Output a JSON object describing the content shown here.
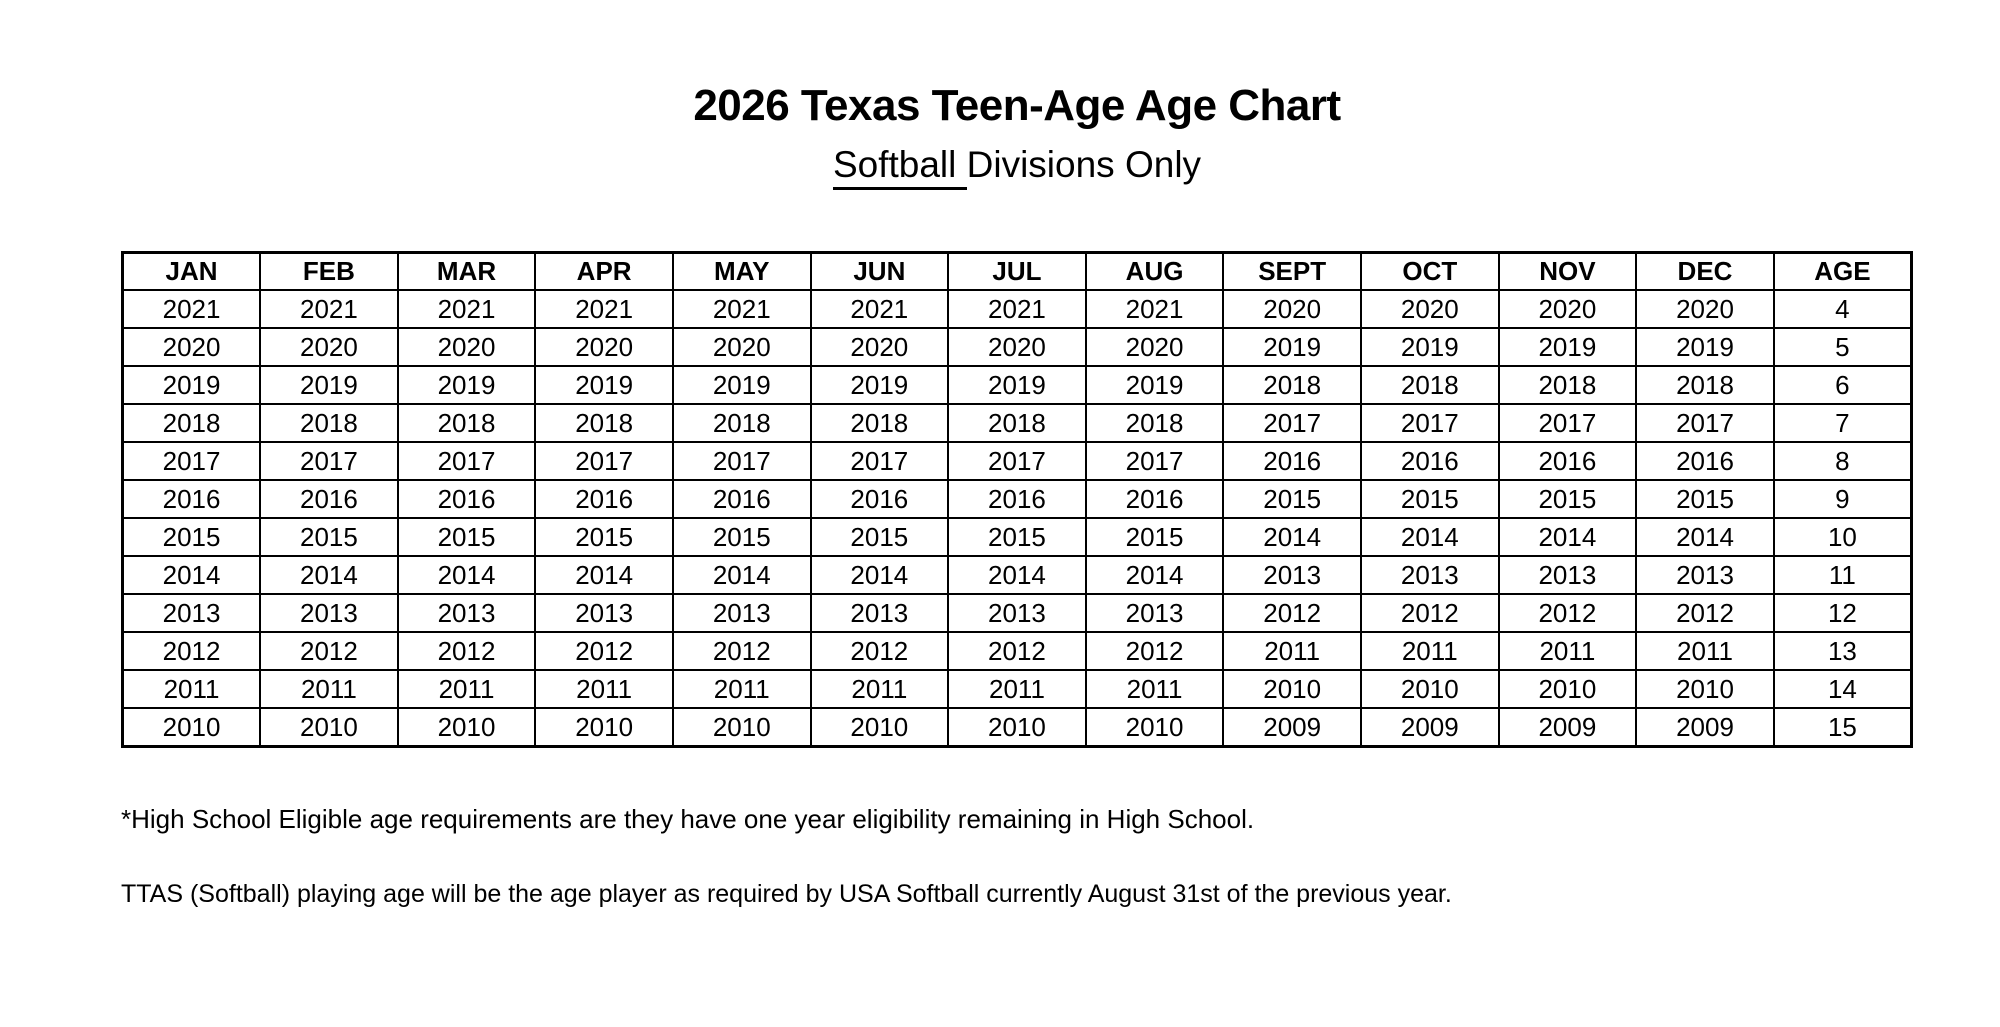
{
  "page": {
    "title": "2026 Texas Teen-Age Age Chart",
    "subtitle_underlined": "Softball ",
    "subtitle_rest": "Divisions Only",
    "footnote1": "*High School Eligible age requirements are they have one year eligibility remaining in High School.",
    "footnote2": "TTAS (Softball) playing age will be the age player as required by USA Softball currently August 31st of the previous year."
  },
  "colors": {
    "text": "#000000",
    "background": "#ffffff",
    "table_border": "#000000"
  },
  "chart_data": {
    "type": "table",
    "title": "2026 Texas Teen-Age Age Chart — Softball Divisions Only",
    "columns": [
      "JAN",
      "FEB",
      "MAR",
      "APR",
      "MAY",
      "JUN",
      "JUL",
      "AUG",
      "SEPT",
      "OCT",
      "NOV",
      "DEC",
      "AGE"
    ],
    "rows": [
      [
        "2021",
        "2021",
        "2021",
        "2021",
        "2021",
        "2021",
        "2021",
        "2021",
        "2020",
        "2020",
        "2020",
        "2020",
        "4"
      ],
      [
        "2020",
        "2020",
        "2020",
        "2020",
        "2020",
        "2020",
        "2020",
        "2020",
        "2019",
        "2019",
        "2019",
        "2019",
        "5"
      ],
      [
        "2019",
        "2019",
        "2019",
        "2019",
        "2019",
        "2019",
        "2019",
        "2019",
        "2018",
        "2018",
        "2018",
        "2018",
        "6"
      ],
      [
        "2018",
        "2018",
        "2018",
        "2018",
        "2018",
        "2018",
        "2018",
        "2018",
        "2017",
        "2017",
        "2017",
        "2017",
        "7"
      ],
      [
        "2017",
        "2017",
        "2017",
        "2017",
        "2017",
        "2017",
        "2017",
        "2017",
        "2016",
        "2016",
        "2016",
        "2016",
        "8"
      ],
      [
        "2016",
        "2016",
        "2016",
        "2016",
        "2016",
        "2016",
        "2016",
        "2016",
        "2015",
        "2015",
        "2015",
        "2015",
        "9"
      ],
      [
        "2015",
        "2015",
        "2015",
        "2015",
        "2015",
        "2015",
        "2015",
        "2015",
        "2014",
        "2014",
        "2014",
        "2014",
        "10"
      ],
      [
        "2014",
        "2014",
        "2014",
        "2014",
        "2014",
        "2014",
        "2014",
        "2014",
        "2013",
        "2013",
        "2013",
        "2013",
        "11"
      ],
      [
        "2013",
        "2013",
        "2013",
        "2013",
        "2013",
        "2013",
        "2013",
        "2013",
        "2012",
        "2012",
        "2012",
        "2012",
        "12"
      ],
      [
        "2012",
        "2012",
        "2012",
        "2012",
        "2012",
        "2012",
        "2012",
        "2012",
        "2011",
        "2011",
        "2011",
        "2011",
        "13"
      ],
      [
        "2011",
        "2011",
        "2011",
        "2011",
        "2011",
        "2011",
        "2011",
        "2011",
        "2010",
        "2010",
        "2010",
        "2010",
        "14"
      ],
      [
        "2010",
        "2010",
        "2010",
        "2010",
        "2010",
        "2010",
        "2010",
        "2010",
        "2009",
        "2009",
        "2009",
        "2009",
        "15"
      ]
    ]
  }
}
